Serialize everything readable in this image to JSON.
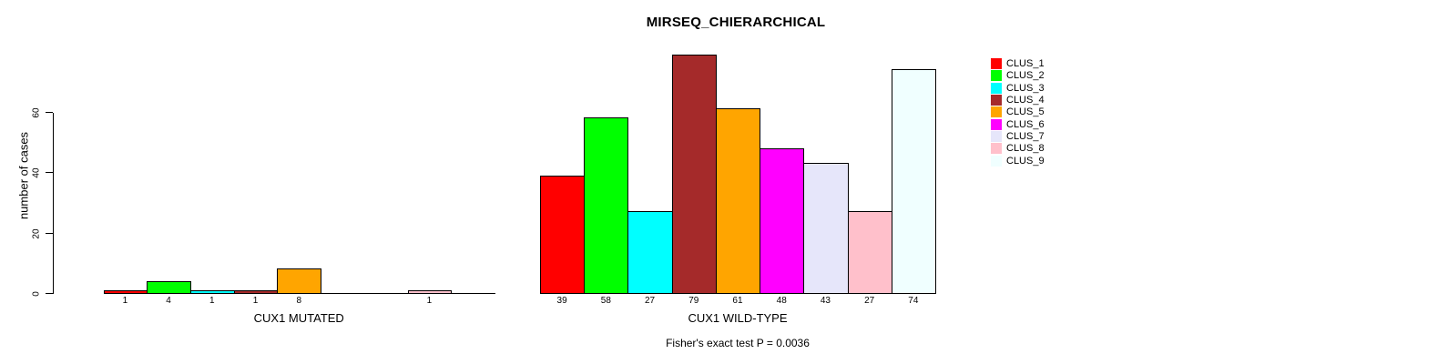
{
  "title": "MIRSEQ_CHIERARCHICAL",
  "footer": "Fisher's exact test P = 0.0036",
  "y_axis": {
    "label": "number of cases",
    "ticks": [
      0,
      20,
      40,
      60
    ],
    "lim": [
      0,
      60
    ]
  },
  "legend": {
    "position": "right",
    "entries": [
      {
        "label": "CLUS_1",
        "color": "#FF0000"
      },
      {
        "label": "CLUS_2",
        "color": "#00FF00"
      },
      {
        "label": "CLUS_3",
        "color": "#00FFFF"
      },
      {
        "label": "CLUS_4",
        "color": "#A52A2A"
      },
      {
        "label": "CLUS_5",
        "color": "#FFA500"
      },
      {
        "label": "CLUS_6",
        "color": "#FF00FF"
      },
      {
        "label": "CLUS_7",
        "color": "#E6E6FA"
      },
      {
        "label": "CLUS_8",
        "color": "#FFC0CB"
      },
      {
        "label": "CLUS_9",
        "color": "#F0FFFF"
      }
    ]
  },
  "chart_data": [
    {
      "type": "bar",
      "panel": "mutated",
      "xlabel": "CUX1 MUTATED",
      "categories": [
        "CLUS_1",
        "CLUS_2",
        "CLUS_3",
        "CLUS_4",
        "CLUS_5",
        "CLUS_6",
        "CLUS_7",
        "CLUS_8",
        "CLUS_9"
      ],
      "values": [
        1,
        4,
        1,
        1,
        8,
        0,
        0,
        1,
        0
      ],
      "bar_labels": [
        "1",
        "4",
        "1",
        "1",
        "8",
        "",
        "",
        "1",
        ""
      ],
      "colors": [
        "#FF0000",
        "#00FF00",
        "#00FFFF",
        "#A52A2A",
        "#FFA500",
        "#FF00FF",
        "#E6E6FA",
        "#FFC0CB",
        "#F0FFFF"
      ],
      "ylim": [
        0,
        60
      ],
      "grid": false
    },
    {
      "type": "bar",
      "panel": "wild-type",
      "xlabel": "CUX1 WILD-TYPE",
      "categories": [
        "CLUS_1",
        "CLUS_2",
        "CLUS_3",
        "CLUS_4",
        "CLUS_5",
        "CLUS_6",
        "CLUS_7",
        "CLUS_8",
        "CLUS_9"
      ],
      "values": [
        39,
        58,
        27,
        79,
        61,
        48,
        43,
        27,
        74
      ],
      "bar_labels": [
        "39",
        "58",
        "27",
        "79",
        "61",
        "48",
        "43",
        "27",
        "74"
      ],
      "colors": [
        "#FF0000",
        "#00FF00",
        "#00FFFF",
        "#A52A2A",
        "#FFA500",
        "#FF00FF",
        "#E6E6FA",
        "#FFC0CB",
        "#F0FFFF"
      ],
      "ylim": [
        0,
        60
      ],
      "grid": false
    }
  ]
}
